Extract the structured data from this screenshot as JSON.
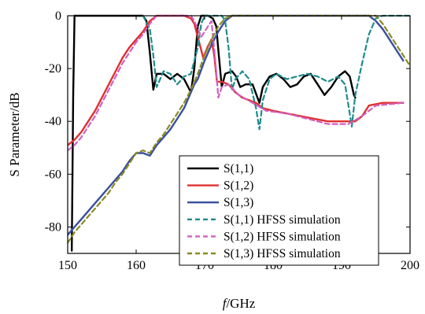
{
  "chart_data": {
    "type": "line",
    "title": "",
    "xlabel_italic": "f",
    "xlabel_rest": "/GHz",
    "ylabel": "S Parameter/dB",
    "xlim": [
      150,
      200
    ],
    "ylim": [
      -90,
      0
    ],
    "x_ticks": [
      150,
      160,
      170,
      180,
      190,
      200
    ],
    "x_tick_labels": [
      "150",
      "160",
      "170",
      "180",
      "190",
      "200"
    ],
    "y_ticks": [
      0,
      -20,
      -40,
      -60,
      -80
    ],
    "y_tick_labels": [
      "0",
      "-20",
      "-40",
      "-60",
      "-80"
    ],
    "legend_position": "bottom-right",
    "series": [
      {
        "name": "S(1,1)",
        "color": "#000000",
        "dash": "solid",
        "points": [
          [
            150.6,
            -89
          ],
          [
            150.8,
            -30
          ],
          [
            151,
            0
          ],
          [
            160,
            0
          ],
          [
            161,
            0
          ],
          [
            161.5,
            -2
          ],
          [
            162,
            -14
          ],
          [
            162.5,
            -28
          ],
          [
            163,
            -22
          ],
          [
            164,
            -22
          ],
          [
            165,
            -24
          ],
          [
            166,
            -22
          ],
          [
            167,
            -24
          ],
          [
            168,
            -29
          ],
          [
            168.5,
            -20
          ],
          [
            169,
            -4
          ],
          [
            169.5,
            0
          ],
          [
            170.5,
            0
          ],
          [
            171.2,
            -1
          ],
          [
            171.7,
            -4
          ],
          [
            172,
            -13
          ],
          [
            172.5,
            -27
          ],
          [
            173,
            -22
          ],
          [
            174,
            -21
          ],
          [
            174.6,
            -23
          ],
          [
            175.2,
            -27
          ],
          [
            176,
            -26
          ],
          [
            177,
            -26
          ],
          [
            178,
            -33
          ],
          [
            178.5,
            -27
          ],
          [
            179.5,
            -23
          ],
          [
            180.5,
            -22
          ],
          [
            181.5,
            -24
          ],
          [
            182.5,
            -27
          ],
          [
            183.5,
            -26
          ],
          [
            184.5,
            -23
          ],
          [
            185.5,
            -22
          ],
          [
            186.5,
            -26
          ],
          [
            187.5,
            -30
          ],
          [
            188.5,
            -27
          ],
          [
            189.5,
            -23
          ],
          [
            190.5,
            -21
          ],
          [
            191.2,
            -23
          ],
          [
            191.8,
            -30
          ],
          [
            192,
            -31
          ]
        ]
      },
      {
        "name": "S(1,2)",
        "color": "#e03030",
        "dash": "solid",
        "points": [
          [
            150,
            -49
          ],
          [
            151,
            -47
          ],
          [
            152,
            -44
          ],
          [
            153,
            -40
          ],
          [
            154,
            -36
          ],
          [
            155,
            -31
          ],
          [
            156,
            -26
          ],
          [
            157,
            -21
          ],
          [
            158,
            -16
          ],
          [
            159,
            -12
          ],
          [
            160,
            -9
          ],
          [
            161,
            -6
          ],
          [
            162,
            -2
          ],
          [
            163,
            0
          ],
          [
            167,
            0
          ],
          [
            168,
            -1
          ],
          [
            168.5,
            -3
          ],
          [
            169.2,
            -10
          ],
          [
            169.8,
            -16
          ],
          [
            170.4,
            -12
          ],
          [
            171,
            -9
          ],
          [
            171.4,
            -15
          ],
          [
            171.8,
            -25
          ],
          [
            172.5,
            -25
          ],
          [
            173.5,
            -26
          ],
          [
            174.5,
            -29
          ],
          [
            175.5,
            -31
          ],
          [
            176.5,
            -32
          ],
          [
            177.5,
            -33
          ],
          [
            178.5,
            -35
          ],
          [
            180,
            -36
          ],
          [
            182,
            -37
          ],
          [
            184,
            -38
          ],
          [
            186,
            -39
          ],
          [
            188,
            -40
          ],
          [
            190,
            -40
          ],
          [
            192,
            -40
          ],
          [
            193,
            -38
          ],
          [
            194,
            -34
          ],
          [
            196,
            -33
          ],
          [
            199,
            -33
          ]
        ]
      },
      {
        "name": "S(1,3)",
        "color": "#3a4fa0",
        "dash": "solid",
        "points": [
          [
            150,
            -83
          ],
          [
            151,
            -80
          ],
          [
            152,
            -77
          ],
          [
            153,
            -74
          ],
          [
            154,
            -71
          ],
          [
            155,
            -68
          ],
          [
            156,
            -65
          ],
          [
            157,
            -62
          ],
          [
            158,
            -59
          ],
          [
            159,
            -55
          ],
          [
            160,
            -52
          ],
          [
            161,
            -52
          ],
          [
            162,
            -53
          ],
          [
            163,
            -49
          ],
          [
            164,
            -46
          ],
          [
            165,
            -43
          ],
          [
            166,
            -39
          ],
          [
            167,
            -35
          ],
          [
            168,
            -29
          ],
          [
            168.5,
            -26
          ],
          [
            169,
            -24
          ],
          [
            170,
            -17
          ],
          [
            171,
            -11
          ],
          [
            172,
            -6
          ],
          [
            173,
            -2
          ],
          [
            174,
            0
          ],
          [
            194,
            0
          ],
          [
            195,
            -2
          ],
          [
            196,
            -5
          ],
          [
            197,
            -9
          ],
          [
            198,
            -13
          ],
          [
            199,
            -17
          ]
        ]
      },
      {
        "name": "S(1,1) HFSS simulation",
        "color": "#1e8c8c",
        "dash": "dashed",
        "points": [
          [
            161,
            0
          ],
          [
            162,
            -5
          ],
          [
            162.5,
            -15
          ],
          [
            163,
            -27
          ],
          [
            164,
            -21
          ],
          [
            165,
            -22
          ],
          [
            166,
            -26
          ],
          [
            167,
            -23
          ],
          [
            168,
            -22
          ],
          [
            169,
            -12
          ],
          [
            169.5,
            -3
          ],
          [
            170,
            0
          ],
          [
            172.5,
            0
          ],
          [
            173,
            -2
          ],
          [
            173.5,
            -12
          ],
          [
            174,
            -28
          ],
          [
            174.5,
            -24
          ],
          [
            175.5,
            -21
          ],
          [
            176.5,
            -24
          ],
          [
            177.5,
            -35
          ],
          [
            178,
            -43
          ],
          [
            178.5,
            -32
          ],
          [
            179.5,
            -24
          ],
          [
            180.5,
            -22
          ],
          [
            182,
            -24
          ],
          [
            183.5,
            -23
          ],
          [
            185,
            -22
          ],
          [
            186.5,
            -23
          ],
          [
            188,
            -25
          ],
          [
            189.5,
            -23
          ],
          [
            190.5,
            -26
          ],
          [
            191.5,
            -42
          ],
          [
            192,
            -30
          ],
          [
            193,
            -18
          ],
          [
            194,
            -7
          ],
          [
            195,
            -1
          ],
          [
            196,
            0
          ],
          [
            200,
            0
          ]
        ]
      },
      {
        "name": "S(1,2) HFSS simulation",
        "color": "#d060c0",
        "dash": "dashed",
        "points": [
          [
            150,
            -51
          ],
          [
            151,
            -49
          ],
          [
            152,
            -46
          ],
          [
            153,
            -42
          ],
          [
            154,
            -38
          ],
          [
            155,
            -33
          ],
          [
            156,
            -28
          ],
          [
            157,
            -23
          ],
          [
            158,
            -18
          ],
          [
            159,
            -14
          ],
          [
            160,
            -10
          ],
          [
            161,
            -7
          ],
          [
            162,
            -3
          ],
          [
            163,
            0
          ],
          [
            168,
            0
          ],
          [
            168.5,
            -2
          ],
          [
            169.5,
            -8
          ],
          [
            170.5,
            -4
          ],
          [
            171,
            -2
          ],
          [
            171.5,
            -15
          ],
          [
            172,
            -31
          ],
          [
            172.5,
            -27
          ],
          [
            173.5,
            -26
          ],
          [
            175,
            -30
          ],
          [
            177,
            -33
          ],
          [
            179,
            -36
          ],
          [
            182,
            -37
          ],
          [
            185,
            -39
          ],
          [
            188,
            -41
          ],
          [
            191,
            -41
          ],
          [
            193,
            -38
          ],
          [
            195,
            -34
          ],
          [
            199,
            -33
          ]
        ]
      },
      {
        "name": "S(1,3) HFSS simulation",
        "color": "#8a8a20",
        "dash": "dashed",
        "points": [
          [
            150,
            -86
          ],
          [
            151,
            -82
          ],
          [
            152,
            -79
          ],
          [
            153,
            -76
          ],
          [
            154,
            -73
          ],
          [
            155,
            -70
          ],
          [
            156,
            -67
          ],
          [
            157,
            -63
          ],
          [
            158,
            -60
          ],
          [
            159,
            -56
          ],
          [
            160,
            -52
          ],
          [
            161,
            -51
          ],
          [
            162,
            -52
          ],
          [
            163,
            -48
          ],
          [
            164,
            -45
          ],
          [
            165,
            -41
          ],
          [
            166,
            -37
          ],
          [
            167,
            -33
          ],
          [
            168,
            -28
          ],
          [
            169,
            -22
          ],
          [
            170,
            -15
          ],
          [
            171,
            -9
          ],
          [
            172,
            -4
          ],
          [
            173,
            -1
          ],
          [
            174,
            0
          ],
          [
            195,
            0
          ],
          [
            196,
            -3
          ],
          [
            197,
            -7
          ],
          [
            198,
            -11
          ],
          [
            199,
            -15
          ],
          [
            200,
            -19
          ]
        ]
      }
    ]
  }
}
